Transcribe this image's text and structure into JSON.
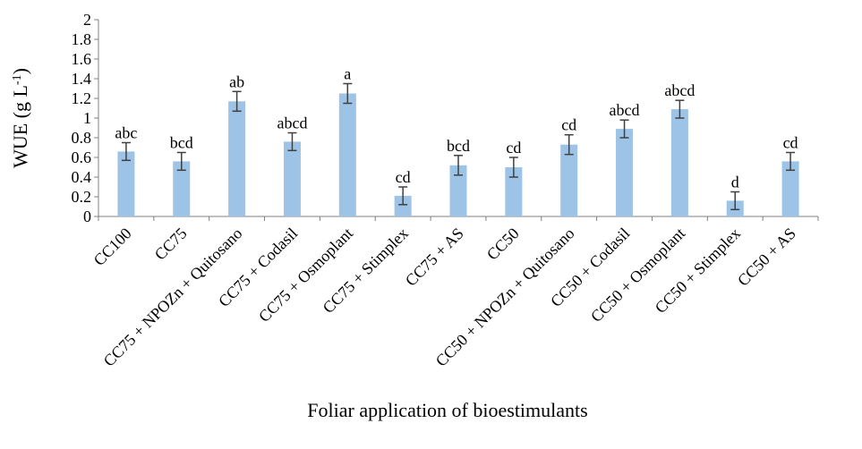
{
  "chart_data": {
    "type": "bar",
    "title": "",
    "xlabel": "Foliar application of bioestimulants",
    "ylabel": {
      "main": "WUE  (g  L",
      "superscript": "-1",
      "close": ")"
    },
    "ylim": [
      0,
      2
    ],
    "yticks": [
      "0",
      "0.2",
      "0.4",
      "0.6",
      "0.8",
      "1",
      "1.2",
      "1.4",
      "1.6",
      "1.8",
      "2"
    ],
    "grid": false,
    "legend": "none",
    "bar_color": "#9DC3E6",
    "error_color": "#404040",
    "categories": [
      "CC100",
      "CC75",
      "CC75 + NPOZn + Quitosano",
      "CC75 + Codasil",
      "CC75 + Osmoplant",
      "CC75 + Stimplex",
      "CC75 + AS",
      "CC50",
      "CC50 + NPOZn + Quitosano",
      "CC50 + Codasil",
      "CC50 + Osmoplant",
      "CC50 + Stimplex",
      "CC50 + AS"
    ],
    "values": [
      0.66,
      0.56,
      1.17,
      0.76,
      1.25,
      0.21,
      0.52,
      0.5,
      0.73,
      0.89,
      1.09,
      0.16,
      0.56
    ],
    "errors": [
      0.09,
      0.09,
      0.1,
      0.09,
      0.1,
      0.09,
      0.1,
      0.1,
      0.1,
      0.09,
      0.09,
      0.09,
      0.09
    ],
    "significance": [
      "abc",
      "bcd",
      "ab",
      "abcd",
      "a",
      "cd",
      "bcd",
      "cd",
      "cd",
      "abcd",
      "abcd",
      "d",
      "cd"
    ]
  }
}
